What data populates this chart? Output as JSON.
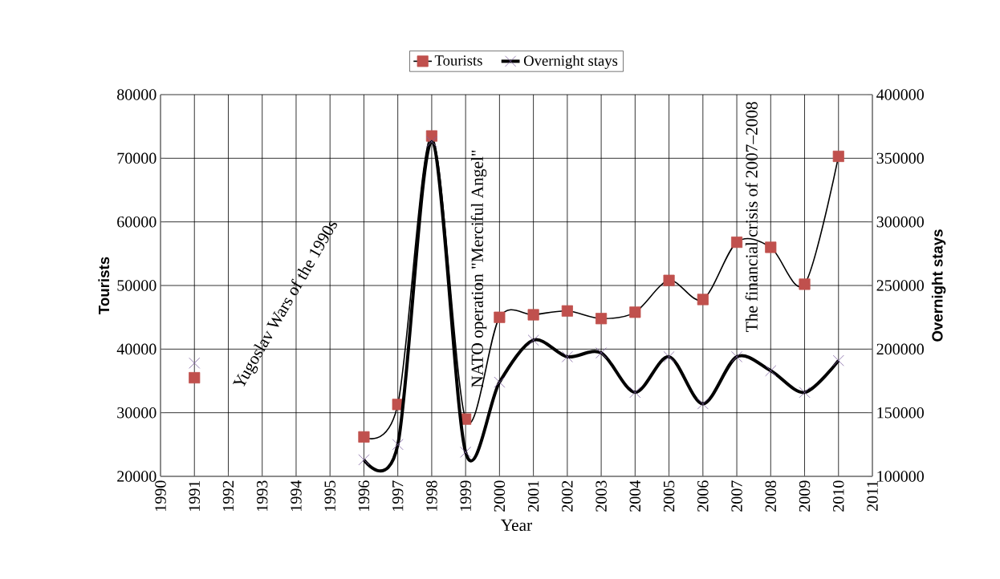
{
  "chart_data": {
    "type": "line",
    "xlabel": "Year",
    "ylabel": "Tourists",
    "y2label": "Overnight stays",
    "x": [
      1991,
      1992,
      1993,
      1994,
      1995,
      1996,
      1997,
      1998,
      1999,
      2000,
      2001,
      2002,
      2003,
      2004,
      2005,
      2006,
      2007,
      2008,
      2009,
      2010
    ],
    "series": [
      {
        "name": "Tourists",
        "color": "#c0504d",
        "marker": "square",
        "values": [
          35500,
          null,
          null,
          null,
          null,
          26200,
          31300,
          73500,
          29000,
          45000,
          45400,
          46000,
          44800,
          45800,
          50800,
          47800,
          56800,
          56000,
          50200,
          70300
        ]
      },
      {
        "name": "Overnight stays",
        "color": "#8064a2",
        "marker": "cross",
        "axis": "y2",
        "values": [
          189000,
          null,
          null,
          null,
          null,
          113000,
          125000,
          363000,
          119000,
          174000,
          207000,
          194000,
          197000,
          166000,
          194000,
          157000,
          194000,
          183000,
          166000,
          191000
        ]
      }
    ],
    "xlim": [
      1990,
      2011
    ],
    "xticks": [
      1990,
      1991,
      1992,
      1993,
      1994,
      1995,
      1996,
      1997,
      1998,
      1999,
      2000,
      2001,
      2002,
      2003,
      2004,
      2005,
      2006,
      2007,
      2008,
      2009,
      2010,
      2011
    ],
    "ylim": [
      20000,
      80000
    ],
    "yticks": [
      20000,
      30000,
      40000,
      50000,
      60000,
      70000,
      80000
    ],
    "y2lim": [
      100000,
      400000
    ],
    "y2ticks": [
      100000,
      150000,
      200000,
      250000,
      300000,
      350000,
      400000
    ],
    "grid": true,
    "legend": "top",
    "annotations": [
      "Yugoslav Wars of the 1990s",
      "NATO operation \"Merciful Angel\"",
      "The financial crisis of 2007–2008"
    ]
  }
}
